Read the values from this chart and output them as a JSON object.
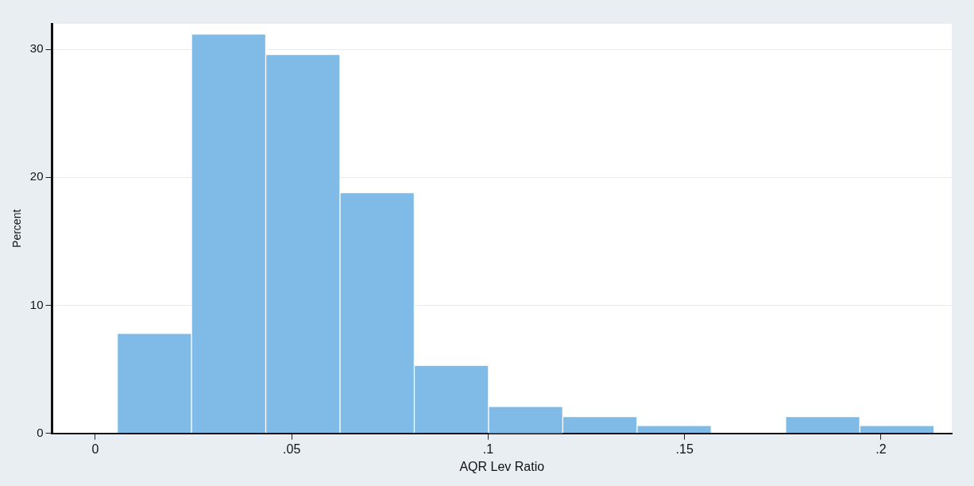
{
  "chart_data": {
    "type": "histogram",
    "xlabel": "AQR Lev Ratio",
    "ylabel": "Percent",
    "bins": [
      0.0056,
      0.0245,
      0.0434,
      0.0623,
      0.0812,
      0.1001,
      0.119,
      0.1379,
      0.1568,
      0.1757,
      0.1946,
      0.2135
    ],
    "values": [
      7.8,
      31.2,
      29.6,
      18.8,
      5.3,
      2.1,
      1.3,
      0.6,
      0,
      1.3,
      0.6
    ],
    "color": "#7fbbe6",
    "xlim": [
      -0.011,
      0.218
    ],
    "xticks": [
      0,
      {
        "value": 0.05,
        "label": ".05"
      },
      {
        "value": 0.1,
        "label": ".1"
      },
      {
        "value": 0.15,
        "label": ".15"
      },
      {
        "value": 0.2,
        "label": ".2"
      }
    ],
    "ylim": [
      0,
      32
    ],
    "yticks": [
      0,
      10,
      20,
      30
    ],
    "grid": "y"
  }
}
